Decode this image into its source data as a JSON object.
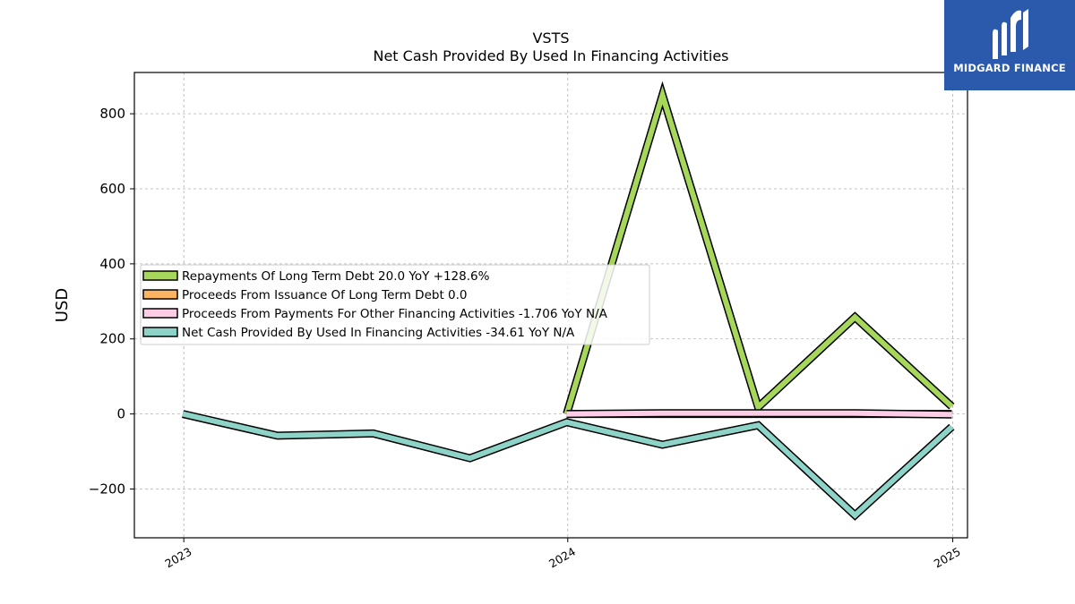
{
  "brand": {
    "name": "MIDGARD FINANCE",
    "bg_color": "#2b5aad",
    "icon": "midgard-m-logo-icon"
  },
  "chart_data": {
    "type": "line",
    "title": "VSTS",
    "subtitle": "Net Cash Provided By Used In Financing Activities",
    "xlabel": "",
    "ylabel": "USD",
    "x_ticks": [
      "2023",
      "2024",
      "2025"
    ],
    "y_ticks": [
      -200,
      0,
      200,
      400,
      600,
      800
    ],
    "xlim": [
      "2022-11-15",
      "2025-01-15"
    ],
    "ylim": [
      -330,
      910
    ],
    "grid": true,
    "legend_position": "center-left",
    "series": [
      {
        "name": "Repayments Of Long Term Debt",
        "legend_label": "Repayments Of Long Term Debt  20.0 YoY +128.6%",
        "color": "#a6d75b",
        "x": [
          "2023-12-31",
          "2024-03-31",
          "2024-06-30",
          "2024-09-30",
          "2024-12-31"
        ],
        "values": [
          0,
          850,
          18,
          258,
          20
        ]
      },
      {
        "name": "Proceeds From Issuance Of Long Term Debt",
        "legend_label": "Proceeds From Issuance Of Long Term Debt  0.0",
        "color": "#fdb462",
        "x": [
          "2023-12-31",
          "2024-03-31",
          "2024-06-30",
          "2024-09-30",
          "2024-12-31"
        ],
        "values": [
          0,
          0,
          0,
          0,
          0
        ]
      },
      {
        "name": "Proceeds From Payments For Other Financing Activities",
        "legend_label": "Proceeds From Payments For Other Financing Activities  -1.706 YoY N/A",
        "color": "#fccde5",
        "x": [
          "2023-12-31",
          "2024-03-31",
          "2024-06-30",
          "2024-09-30",
          "2024-12-31"
        ],
        "values": [
          0,
          2,
          2,
          2,
          -1.706
        ]
      },
      {
        "name": "Net Cash Provided By Used In Financing Activities",
        "legend_label": "Net Cash Provided By Used In Financing Activities  -34.61 YoY N/A",
        "color": "#8dd3c7",
        "x": [
          "2022-12-31",
          "2023-03-31",
          "2023-06-30",
          "2023-09-30",
          "2023-12-31",
          "2024-03-31",
          "2024-06-30",
          "2024-09-30",
          "2024-12-31"
        ],
        "values": [
          0,
          -58,
          -52,
          -118,
          -22,
          -82,
          -30,
          -270,
          -34.61
        ]
      }
    ]
  }
}
